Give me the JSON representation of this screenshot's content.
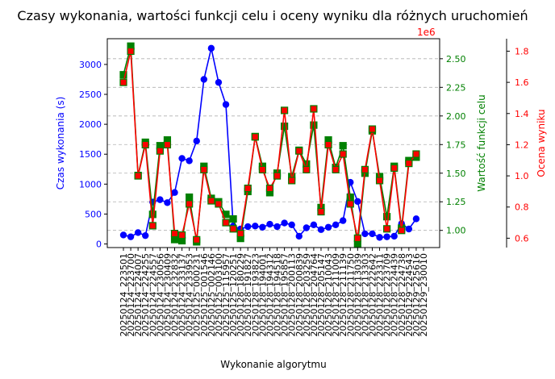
{
  "chart_data": {
    "type": "line",
    "title": "Czasy wykonania, wartości funkcji celu i oceny wyniku dla różnych uruchomień",
    "xlabel": "Wykonanie algorytmu",
    "categories": [
      "20250124_223501",
      "20250124_223700",
      "20250124_224007",
      "20250124_224255",
      "20250124_224557",
      "20250124_230056",
      "20250124_230409",
      "20250124_232832",
      "20250124_233137",
      "20250124_233953",
      "20250125_000231",
      "20250125_001546",
      "20250125_002146",
      "20250125_003100",
      "20250125_115957",
      "20250125_120251",
      "20250128_180229",
      "20250128_191827",
      "20250128_193823",
      "20250128_194001",
      "20250128_194312",
      "20250128_194518",
      "20250128_195857",
      "20250128_200113",
      "20250128_200839",
      "20250128_203259",
      "20250128_204764",
      "20250128_205147",
      "20250128_210043",
      "20250128_211009",
      "20250128_211139",
      "20250128_211750",
      "20250128_213039",
      "20250128_213303",
      "20250128_222642",
      "20250128_223311",
      "20250128_223709",
      "20250128_224439",
      "20250128_224738",
      "20250129_224543",
      "20250129_225616",
      "20250129_230010"
    ],
    "axes": {
      "left": {
        "label": "Czas wykonania (s)",
        "color": "#0000ff",
        "ylim": [
          -60,
          3430
        ],
        "ticks": [
          0,
          500,
          1000,
          1500,
          2000,
          2500,
          3000
        ]
      },
      "mid": {
        "label": "Wartość funkcji celu",
        "color": "#008000",
        "ylim": [
          850000,
          2675000
        ],
        "ticks": [
          1000000,
          1250000,
          1500000,
          1750000,
          2000000,
          2250000,
          2500000
        ],
        "tick_labels": [
          "1.00",
          "1.25",
          "1.50",
          "1.75",
          "2.00",
          "2.25",
          "2.50"
        ],
        "offset_label": "1e6"
      },
      "right": {
        "label": "Ocena wyniku",
        "color": "#ff0000",
        "ylim": [
          0.54,
          1.88
        ],
        "ticks": [
          0.6,
          0.8,
          1.0,
          1.2,
          1.4,
          1.6,
          1.8
        ],
        "tick_labels": [
          "0.6",
          "0.8",
          "1.0",
          "1.2",
          "1.4",
          "1.6",
          "1.8"
        ]
      }
    },
    "grid": true,
    "series": [
      {
        "axis": "left",
        "color": "#0000ff",
        "marker": "circle",
        "values": [
          150,
          120,
          190,
          140,
          700,
          740,
          690,
          860,
          1430,
          1390,
          1720,
          2750,
          3270,
          2700,
          2330,
          300,
          250,
          290,
          300,
          280,
          330,
          290,
          350,
          320,
          130,
          270,
          320,
          240,
          280,
          320,
          390,
          1030,
          710,
          170,
          170,
          110,
          120,
          130,
          340,
          250,
          420,
          null
        ]
      },
      {
        "axis": "mid",
        "color": "#008000",
        "marker": "square",
        "values": [
          2360000,
          2610000,
          1480000,
          1770000,
          1140000,
          1740000,
          1790000,
          920000,
          910000,
          1290000,
          900000,
          1560000,
          1280000,
          1250000,
          1140000,
          1100000,
          930000,
          1340000,
          1820000,
          1560000,
          1330000,
          1500000,
          1910000,
          1470000,
          1700000,
          1580000,
          1920000,
          1200000,
          1790000,
          1550000,
          1740000,
          1290000,
          880000,
          1500000,
          1870000,
          1470000,
          1120000,
          1560000,
          1020000,
          1610000,
          1640000,
          null
        ]
      },
      {
        "axis": "right",
        "color": "#ff0000",
        "marker": "square",
        "values": [
          1.6,
          1.8,
          1.0,
          1.2,
          0.68,
          1.16,
          1.2,
          0.63,
          0.62,
          0.82,
          0.59,
          1.04,
          0.84,
          0.82,
          0.7,
          0.66,
          0.63,
          0.92,
          1.25,
          1.04,
          0.92,
          1.0,
          1.42,
          0.97,
          1.16,
          1.04,
          1.43,
          0.77,
          1.2,
          1.04,
          1.14,
          0.82,
          0.6,
          1.04,
          1.3,
          0.97,
          0.66,
          1.05,
          0.65,
          1.08,
          1.14,
          null
        ]
      }
    ]
  }
}
